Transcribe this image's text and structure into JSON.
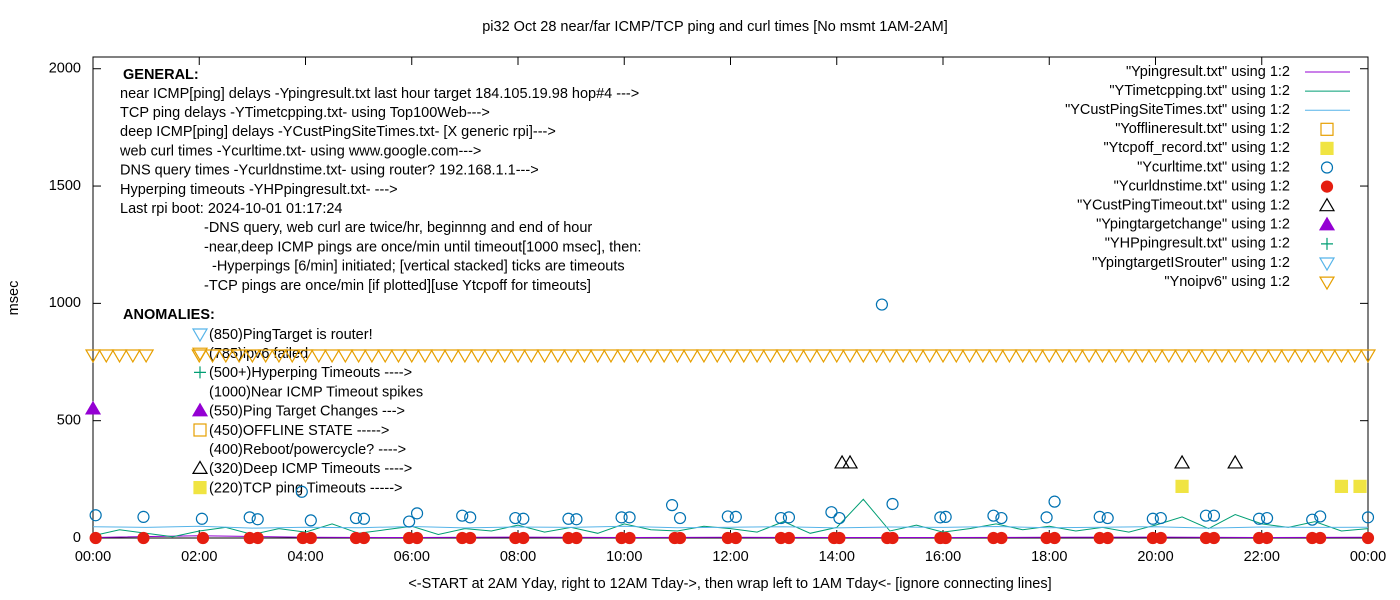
{
  "chart_data": {
    "type": "scatter",
    "title": "pi32 Oct 28  near/far ICMP/TCP ping and curl times [No msmt 1AM-2AM]",
    "xlabel": "<-START at 2AM Yday, right to 12AM Tday->, then wrap left to 1AM Tday<- [ignore connecting lines]",
    "ylabel": "msec",
    "xlim": [
      0,
      24
    ],
    "ylim": [
      0,
      2050
    ],
    "xticks": [
      {
        "value": 0,
        "label": "00:00"
      },
      {
        "value": 2,
        "label": "02:00"
      },
      {
        "value": 4,
        "label": "04:00"
      },
      {
        "value": 6,
        "label": "06:00"
      },
      {
        "value": 8,
        "label": "08:00"
      },
      {
        "value": 10,
        "label": "10:00"
      },
      {
        "value": 12,
        "label": "12:00"
      },
      {
        "value": 14,
        "label": "14:00"
      },
      {
        "value": 16,
        "label": "16:00"
      },
      {
        "value": 18,
        "label": "18:00"
      },
      {
        "value": 20,
        "label": "20:00"
      },
      {
        "value": 22,
        "label": "22:00"
      },
      {
        "value": 24,
        "label": "00:00"
      }
    ],
    "yticks": [
      0,
      500,
      1000,
      1500,
      2000
    ],
    "legend": "top-right",
    "annotations": {
      "general_heading": "GENERAL:",
      "general_lines": [
        "near ICMP[ping] delays -Ypingresult.txt last hour target 184.105.19.98 hop#4 --->",
        "TCP ping delays -YTimetcpping.txt- using Top100Web--->",
        "deep ICMP[ping] delays -YCustPingSiteTimes.txt- [X generic rpi]--->",
        "web curl times -Ycurltime.txt- using www.google.com--->",
        "DNS query times -Ycurldnstime.txt- using router? 192.168.1.1--->",
        "Hyperping timeouts -YHPpingresult.txt- --->",
        "Last rpi boot: 2024-10-01 01:17:24",
        "-DNS query, web curl are twice/hr, beginnng and end of hour",
        "-near,deep ICMP pings are once/min until timeout[1000 msec], then:",
        "-Hyperpings [6/min] initiated; [vertical stacked] ticks are timeouts",
        "-TCP pings are once/min [if plotted][use Ytcpoff for timeouts]"
      ],
      "anomalies_heading": "ANOMALIES:",
      "anomalies": [
        "(850)PingTarget is router!",
        "(785)ipv6 failed",
        "(500+)Hyperping Timeouts ---->",
        "(1000)Near ICMP Timeout spikes",
        "(550)Ping Target Changes --->",
        "(450)OFFLINE STATE ----->",
        "(400)Reboot/powercycle? ---->",
        "(320)Deep ICMP Timeouts ---->",
        "(220)TCP ping Timeouts ----->"
      ]
    },
    "series": [
      {
        "name": "\"Ypingresult.txt\" using 1:2",
        "style": "line",
        "color": "#9400d3",
        "x": [
          0,
          2,
          4,
          6,
          8,
          10,
          12,
          14,
          16,
          18,
          20,
          22,
          24
        ],
        "values": [
          2,
          10,
          3,
          2,
          4,
          2,
          3,
          2,
          2,
          3,
          4,
          2,
          3
        ]
      },
      {
        "name": "\"YTimetcpping.txt\" using 1:2",
        "style": "line",
        "color": "#009e73",
        "x": [
          0,
          0.5,
          1,
          1.5,
          2,
          2.5,
          3,
          3.5,
          4,
          4.5,
          5,
          5.5,
          6,
          6.5,
          7,
          7.5,
          8,
          8.5,
          9,
          9.5,
          10,
          10.5,
          11,
          11.5,
          12,
          12.5,
          13,
          13.5,
          14,
          14.5,
          15,
          15.5,
          16,
          16.5,
          17,
          17.5,
          18,
          18.5,
          19,
          19.5,
          20,
          20.5,
          21,
          21.5,
          22,
          22.5,
          23,
          23.5,
          24
        ],
        "values": [
          10,
          35,
          20,
          5,
          30,
          45,
          15,
          40,
          25,
          60,
          20,
          35,
          50,
          15,
          40,
          30,
          55,
          25,
          45,
          20,
          60,
          35,
          30,
          50,
          40,
          25,
          70,
          20,
          45,
          165,
          30,
          55,
          25,
          40,
          60,
          35,
          50,
          30,
          45,
          25,
          55,
          90,
          40,
          100,
          60,
          45,
          70,
          30,
          40
        ]
      },
      {
        "name": "\"YCustPingSiteTimes.txt\" using 1:2",
        "style": "line",
        "color": "#56b4e9",
        "x": [
          0,
          1,
          2,
          3,
          4,
          5,
          6,
          7,
          8,
          9,
          10,
          11,
          12,
          13,
          14,
          15,
          16,
          17,
          18,
          19,
          20,
          21,
          22,
          23,
          24
        ],
        "values": [
          48,
          45,
          50,
          42,
          46,
          44,
          49,
          43,
          47,
          45,
          50,
          44,
          46,
          48,
          43,
          47,
          45,
          49,
          44,
          46,
          48,
          42,
          47,
          45,
          46
        ]
      },
      {
        "name": "\"Yofflineresult.txt\" using 1:2",
        "style": "points",
        "marker": "square-open",
        "color": "#e69f00",
        "x": [],
        "values": []
      },
      {
        "name": "\"Ytcpoff_record.txt\" using 1:2",
        "style": "points",
        "marker": "square-filled",
        "color": "#f0e442",
        "x": [
          20.5,
          23.5,
          23.85
        ],
        "values": [
          220,
          220,
          220
        ]
      },
      {
        "name": "\"Ycurltime.txt\" using 1:2",
        "style": "points",
        "marker": "circle-open",
        "color": "#0072b2",
        "x": [
          0.05,
          0.95,
          2.05,
          2.95,
          3.1,
          3.93,
          4.1,
          4.95,
          5.1,
          5.95,
          6.1,
          6.95,
          7.1,
          7.95,
          8.1,
          8.95,
          9.1,
          9.95,
          10.1,
          10.9,
          11.05,
          11.95,
          12.1,
          12.95,
          13.1,
          13.9,
          14.05,
          14.85,
          15.05,
          15.95,
          16.05,
          16.95,
          17.1,
          17.95,
          18.1,
          18.95,
          19.1,
          19.95,
          20.1,
          20.95,
          21.1,
          21.95,
          22.1,
          22.95,
          23.1,
          24
        ],
        "values": [
          97,
          90,
          82,
          88,
          80,
          197,
          75,
          85,
          82,
          70,
          105,
          95,
          88,
          85,
          82,
          82,
          80,
          88,
          88,
          140,
          85,
          92,
          90,
          85,
          88,
          110,
          85,
          995,
          145,
          88,
          90,
          95,
          85,
          88,
          155,
          90,
          85,
          82,
          85,
          95,
          95,
          82,
          85,
          78,
          92,
          88
        ]
      },
      {
        "name": "\"Ycurldnstime.txt\" using 1:2",
        "style": "points",
        "marker": "circle-filled",
        "color": "#e51e10",
        "x": [
          0.05,
          0.95,
          2.07,
          2.95,
          3.1,
          3.95,
          4.1,
          4.95,
          5.1,
          5.95,
          6.1,
          6.95,
          7.1,
          7.95,
          8.1,
          8.95,
          9.1,
          9.95,
          10.1,
          10.95,
          11.05,
          11.95,
          12.1,
          12.95,
          13.1,
          13.95,
          14.05,
          14.95,
          15.05,
          15.95,
          16.05,
          16.95,
          17.1,
          17.95,
          18.1,
          18.95,
          19.1,
          19.95,
          20.1,
          20.95,
          21.1,
          21.95,
          22.1,
          22.95,
          23.1,
          24
        ],
        "values": [
          0,
          0,
          0,
          0,
          0,
          0,
          0,
          0,
          0,
          0,
          0,
          0,
          0,
          0,
          0,
          0,
          0,
          0,
          0,
          0,
          0,
          0,
          0,
          0,
          0,
          0,
          0,
          0,
          0,
          0,
          0,
          0,
          0,
          0,
          0,
          0,
          0,
          0,
          0,
          0,
          0,
          0,
          0,
          0,
          0,
          0
        ]
      },
      {
        "name": "\"YCustPingTimeout.txt\" using 1:2",
        "style": "points",
        "marker": "triangle-up-open",
        "color": "#000000",
        "x": [
          14.1,
          14.25,
          20.5,
          21.5
        ],
        "values": [
          320,
          320,
          320,
          320
        ]
      },
      {
        "name": "\"Ypingtargetchange\" using 1:2",
        "style": "points",
        "marker": "triangle-up-filled",
        "color": "#9400d3",
        "x": [
          0
        ],
        "values": [
          550
        ]
      },
      {
        "name": "\"YHPpingresult.txt\" using 1:2",
        "style": "points",
        "marker": "plus",
        "color": "#009e73",
        "x": [],
        "values": []
      },
      {
        "name": "\"YpingtargetISrouter\" using 1:2",
        "style": "points",
        "marker": "triangle-down-open",
        "color": "#56b4e9",
        "x": [],
        "values": []
      },
      {
        "name": "\"Ynoipv6\" using 1:2",
        "style": "points",
        "marker": "triangle-down-open",
        "color": "#e69f00",
        "x": [
          0,
          0.25,
          0.5,
          0.75,
          1,
          2,
          2.25,
          2.5,
          2.75,
          3,
          3.25,
          3.5,
          3.75,
          4,
          4.25,
          4.5,
          4.75,
          5,
          5.25,
          5.5,
          5.75,
          6,
          6.25,
          6.5,
          6.75,
          7,
          7.25,
          7.5,
          7.75,
          8,
          8.25,
          8.5,
          8.75,
          9,
          9.25,
          9.5,
          9.75,
          10,
          10.25,
          10.5,
          10.75,
          11,
          11.25,
          11.5,
          11.75,
          12,
          12.25,
          12.5,
          12.75,
          13,
          13.25,
          13.5,
          13.75,
          14,
          14.25,
          14.5,
          14.75,
          15,
          15.25,
          15.5,
          15.75,
          16,
          16.25,
          16.5,
          16.75,
          17,
          17.25,
          17.5,
          17.75,
          18,
          18.25,
          18.5,
          18.75,
          19,
          19.25,
          19.5,
          19.75,
          20,
          20.25,
          20.5,
          20.75,
          21,
          21.25,
          21.5,
          21.75,
          22,
          22.25,
          22.5,
          22.75,
          23,
          23.25,
          23.5,
          23.75,
          24
        ],
        "values": [
          780,
          780,
          780,
          780,
          780,
          780,
          780,
          780,
          780,
          780,
          780,
          780,
          780,
          780,
          780,
          780,
          780,
          780,
          780,
          780,
          780,
          780,
          780,
          780,
          780,
          780,
          780,
          780,
          780,
          780,
          780,
          780,
          780,
          780,
          780,
          780,
          780,
          780,
          780,
          780,
          780,
          780,
          780,
          780,
          780,
          780,
          780,
          780,
          780,
          780,
          780,
          780,
          780,
          780,
          780,
          780,
          780,
          780,
          780,
          780,
          780,
          780,
          780,
          780,
          780,
          780,
          780,
          780,
          780,
          780,
          780,
          780,
          780,
          780,
          780,
          780,
          780,
          780,
          780,
          780,
          780,
          780,
          780,
          780,
          780,
          780,
          780,
          780,
          780,
          780,
          780,
          780,
          780,
          780
        ]
      }
    ]
  }
}
